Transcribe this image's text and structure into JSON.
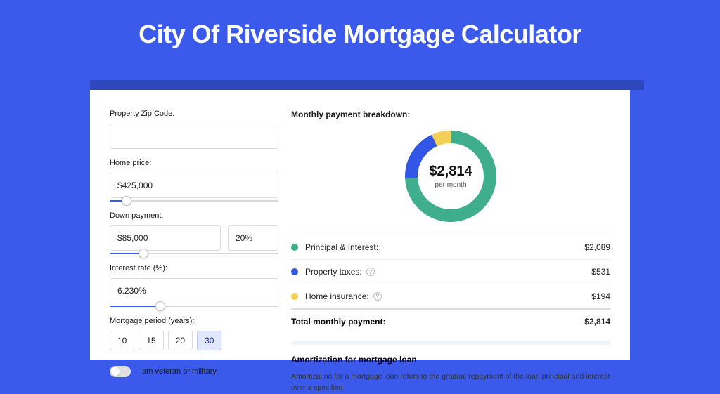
{
  "colors": {
    "page_bg": "#3b5aeb",
    "card_bg": "#ffffff",
    "text": "#1a1a1a",
    "border": "#dcdcdc",
    "slider_fill": "#3b5aeb",
    "period_active_bg": "#e1e7fd"
  },
  "title": "City Of Riverside Mortgage Calculator",
  "form": {
    "zip": {
      "label": "Property Zip Code:",
      "value": ""
    },
    "home_price": {
      "label": "Home price:",
      "value": "$425,000",
      "slider_percent": 10
    },
    "down_payment": {
      "label": "Down payment:",
      "value": "$85,000",
      "percent": "20%",
      "slider_percent": 20
    },
    "interest_rate": {
      "label": "Interest rate (%):",
      "value": "6.230%",
      "slider_percent": 30
    },
    "period": {
      "label": "Mortgage period (years):",
      "options": [
        "10",
        "15",
        "20",
        "30"
      ],
      "selected": "30"
    },
    "veteran": {
      "label": "I am veteran or military",
      "checked": false
    }
  },
  "breakdown": {
    "title": "Monthly payment breakdown:",
    "center": {
      "amount": "$2,814",
      "sub": "per month"
    },
    "donut": {
      "slices": [
        {
          "key": "principal_interest",
          "value": 2089,
          "color": "#3fae8c"
        },
        {
          "key": "property_taxes",
          "value": 531,
          "color": "#3356e6"
        },
        {
          "key": "home_insurance",
          "value": 194,
          "color": "#f2cf55"
        }
      ],
      "stroke_width": 18,
      "radius": 56
    },
    "items": [
      {
        "label": "Principal & Interest:",
        "value": "$2,089",
        "color": "#3fae8c",
        "info": false
      },
      {
        "label": "Property taxes:",
        "value": "$531",
        "color": "#3356e6",
        "info": true
      },
      {
        "label": "Home insurance:",
        "value": "$194",
        "color": "#f2cf55",
        "info": true
      }
    ],
    "total": {
      "label": "Total monthly payment:",
      "value": "$2,814"
    }
  },
  "amortization": {
    "title": "Amortization for mortgage loan",
    "body": "Amortization for a mortgage loan refers to the gradual repayment of the loan principal and interest over a specified"
  }
}
